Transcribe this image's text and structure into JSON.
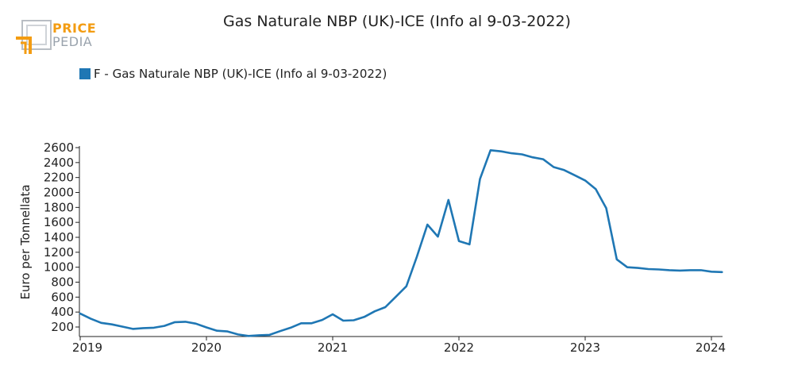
{
  "header": {
    "title": "Gas Naturale NBP (UK)-ICE (Info al 9-03-2022)",
    "logo_top": "PRICE",
    "logo_bottom": "PEDIA"
  },
  "colors": {
    "series": "#1f77b4",
    "logo_orange": "#f39c12",
    "logo_grey": "#9aa3ad"
  },
  "chart_data": {
    "type": "line",
    "title": "Gas Naturale NBP (UK)-ICE (Info al 9-03-2022)",
    "ylabel": "Euro per Tonnellata",
    "xlabel": "",
    "ylim": [
      100,
      2650
    ],
    "yticks": [
      200,
      400,
      600,
      800,
      1000,
      1200,
      1400,
      1600,
      1800,
      2000,
      2200,
      2400,
      2600
    ],
    "xticks": [
      "2019",
      "2020",
      "2021",
      "2022",
      "2023",
      "2024"
    ],
    "grid": false,
    "legend_position": "top-left",
    "series": [
      {
        "name": "F - Gas Naturale NBP (UK)-ICE (Info al 9-03-2022)",
        "x": [
          "2019-01",
          "2019-02",
          "2019-03",
          "2019-04",
          "2019-05",
          "2019-06",
          "2019-07",
          "2019-08",
          "2019-09",
          "2019-10",
          "2019-11",
          "2019-12",
          "2020-01",
          "2020-02",
          "2020-03",
          "2020-04",
          "2020-05",
          "2020-06",
          "2020-07",
          "2020-08",
          "2020-09",
          "2020-10",
          "2020-11",
          "2020-12",
          "2021-01",
          "2021-02",
          "2021-03",
          "2021-04",
          "2021-05",
          "2021-06",
          "2021-07",
          "2021-08",
          "2021-09",
          "2021-10",
          "2021-11",
          "2021-12",
          "2022-01",
          "2022-02",
          "2022-03",
          "2022-04",
          "2022-05",
          "2022-06",
          "2022-07",
          "2022-08",
          "2022-09",
          "2022-10",
          "2022-11",
          "2022-12",
          "2023-01",
          "2023-02",
          "2023-03",
          "2023-04",
          "2023-05",
          "2023-06",
          "2023-07",
          "2023-08",
          "2023-09",
          "2023-10",
          "2023-11",
          "2023-12",
          "2024-01",
          "2024-02"
        ],
        "values": [
          380,
          310,
          255,
          235,
          205,
          175,
          185,
          190,
          215,
          265,
          270,
          245,
          195,
          150,
          140,
          100,
          80,
          90,
          95,
          145,
          190,
          250,
          250,
          295,
          370,
          285,
          290,
          335,
          410,
          465,
          605,
          745,
          1140,
          1570,
          1410,
          1900,
          1350,
          1305,
          2180,
          2565,
          2550,
          2525,
          2510,
          2470,
          2445,
          2340,
          2300,
          2230,
          2160,
          2045,
          1790,
          1105,
          1000,
          990,
          975,
          970,
          960,
          955,
          960,
          960,
          940,
          935
        ]
      }
    ]
  }
}
